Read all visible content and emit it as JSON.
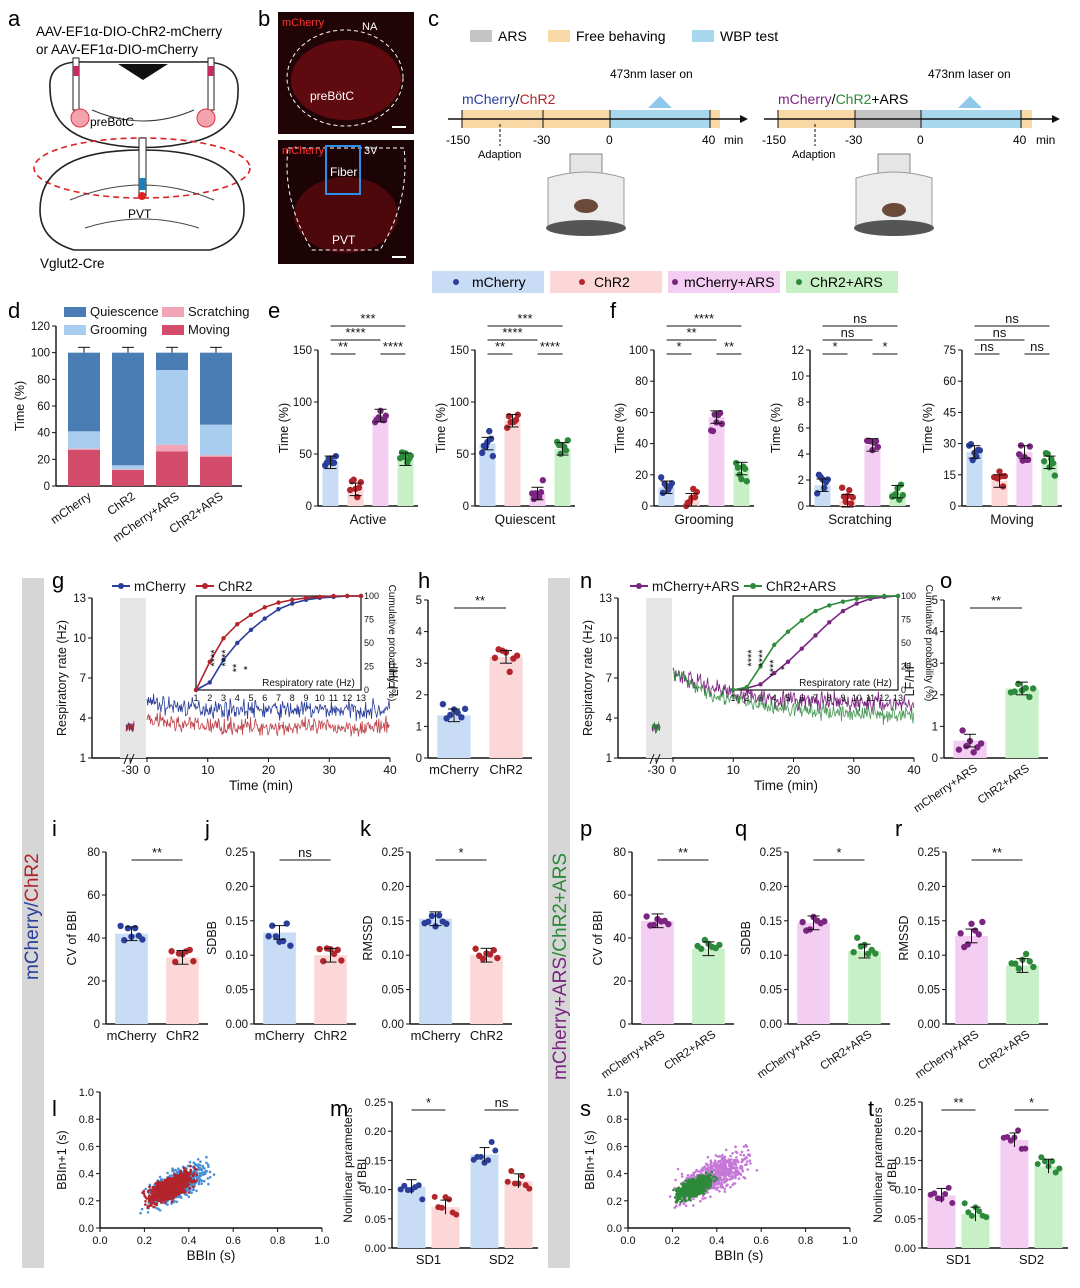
{
  "panel_letters": [
    "a",
    "b",
    "c",
    "d",
    "e",
    "f",
    "g",
    "h",
    "i",
    "j",
    "k",
    "l",
    "m",
    "n",
    "o",
    "p",
    "q",
    "r",
    "s",
    "t"
  ],
  "colors": {
    "mcherry": "#2a3e9a",
    "chr2": "#b2252b",
    "mcherry_ars": "#7b2580",
    "chr2_ars": "#2c8a3a",
    "mcherry_fill": "#c9dcf5",
    "chr2_fill": "#fbd7d8",
    "mcherry_ars_fill": "#f3cdf2",
    "chr2_ars_fill": "#c7f0c7",
    "quiescence": "#4a7db4",
    "grooming": "#a8cdef",
    "scratching": "#f3a4b6",
    "moving": "#d44c6c",
    "ars": "#c4c4c4",
    "free_behaving": "#f8d9a6",
    "wbp": "#a8d8ee",
    "sidebar": "#d6d6d6"
  },
  "panel_a": {
    "virus_line1": "AAV-EF1α-DIO-ChR2-mCherry",
    "virus_line2": "or AAV-EF1α-DIO-mCherry",
    "region1": "preBötC",
    "region2": "PVT",
    "mouse": "Vglut2-Cre"
  },
  "panel_b": {
    "top_stain": "mCherry",
    "top_na": "NA",
    "top_region": "preBötC",
    "bottom_stain": "mCherry",
    "fiber": "Fiber",
    "bottom_3v": "3V",
    "bottom_region": "PVT"
  },
  "panel_c": {
    "legend": [
      "ARS",
      "Free behaving",
      "WBP test"
    ],
    "laser": "473nm laser on",
    "left_group_a": "mCherry",
    "left_slash": "/",
    "left_group_b": "ChR2",
    "right_group_a": "mCherry",
    "right_slash": "/",
    "right_group_b": "ChR2",
    "right_group_c": "+ARS",
    "ticks_left": [
      "-150",
      "-30",
      "0",
      "40"
    ],
    "ticks_right": [
      "-150",
      "-30",
      "0",
      "40"
    ],
    "unit": "min",
    "adaption": "Adaption"
  },
  "group_legend": [
    "mCherry",
    "ChR2",
    "mCherry+ARS",
    "ChR2+ARS"
  ],
  "sidebar_left": {
    "a": "mCherry",
    "slash": "/",
    "b": "ChR2"
  },
  "sidebar_right": {
    "a": "mCherry+ARS",
    "slash": "/",
    "b": "ChR2+ARS"
  },
  "chart_data": [
    {
      "panel": "d",
      "type": "bar",
      "stacked": true,
      "ylabel": "Time (%)",
      "ylim": [
        0,
        120
      ],
      "yticks": [
        0,
        20,
        40,
        60,
        80,
        100,
        120
      ],
      "categories": [
        "mCherry",
        "ChR2",
        "mCherry+ARS",
        "ChR2+ARS"
      ],
      "series": [
        {
          "name": "Moving",
          "values": [
            27,
            12,
            26,
            22
          ]
        },
        {
          "name": "Scratching",
          "values": [
            1,
            0.5,
            5,
            1
          ]
        },
        {
          "name": "Grooming",
          "values": [
            13,
            3,
            56,
            23
          ]
        },
        {
          "name": "Quiescence",
          "values": [
            59,
            84.5,
            13,
            54
          ]
        }
      ],
      "legend": [
        "Quiescence",
        "Scratching",
        "Grooming",
        "Moving"
      ]
    },
    {
      "panel": "e1",
      "type": "bar",
      "xlabel": "Active",
      "ylabel": "Time (%)",
      "ylim": [
        0,
        150
      ],
      "yticks": [
        0,
        50,
        100,
        150
      ],
      "values": [
        42,
        16,
        87,
        45
      ],
      "sig": [
        "***",
        "****",
        "**",
        "****"
      ]
    },
    {
      "panel": "e2",
      "type": "bar",
      "xlabel": "Quiescent",
      "ylabel": "Time (%)",
      "ylim": [
        0,
        150
      ],
      "yticks": [
        0,
        50,
        100,
        150
      ],
      "values": [
        60,
        82,
        12,
        55
      ],
      "sig": [
        "***",
        "****",
        "**",
        "****"
      ]
    },
    {
      "panel": "f1",
      "type": "bar",
      "xlabel": "Grooming",
      "ylabel": "Time (%)",
      "ylim": [
        0,
        100
      ],
      "yticks": [
        0,
        20,
        40,
        60,
        80,
        100
      ],
      "values": [
        12,
        4,
        57,
        24
      ],
      "sig": [
        "****",
        "**",
        "*",
        "**"
      ]
    },
    {
      "panel": "f2",
      "type": "bar",
      "xlabel": "Scratching",
      "ylabel": "Time (%)",
      "ylim": [
        0,
        12
      ],
      "yticks": [
        0,
        2,
        4,
        6,
        8,
        10,
        12
      ],
      "values": [
        1.6,
        0.4,
        4.7,
        1.1
      ],
      "sig": [
        "ns",
        "ns",
        "*",
        "*"
      ]
    },
    {
      "panel": "f3",
      "type": "bar",
      "xlabel": "Moving",
      "ylabel": "Time (%)",
      "ylim": [
        0,
        75
      ],
      "yticks": [
        0,
        15,
        30,
        45,
        60,
        75
      ],
      "values": [
        26,
        12,
        26,
        21
      ],
      "sig": [
        "ns",
        "ns",
        "ns",
        "ns"
      ]
    },
    {
      "panel": "g",
      "type": "line",
      "xlabel": "Time (min)",
      "ylabel": "Respiratory rate (Hz)",
      "ylim": [
        1,
        13
      ],
      "yticks": [
        1,
        4,
        7,
        10,
        13
      ],
      "xticks": [
        "-30",
        "0",
        "10",
        "20",
        "30",
        "40"
      ],
      "series": [
        {
          "name": "mCherry",
          "mean_hz": 4.6
        },
        {
          "name": "ChR2",
          "mean_hz": 3.3
        }
      ],
      "inset": {
        "xlabel": "Respiratory rate (Hz)",
        "ylabel": "Cumulative probability (%)",
        "xticks": [
          "1",
          "2",
          "3",
          "4",
          "5",
          "6",
          "7",
          "8",
          "9",
          "10",
          "11",
          "12",
          "13"
        ],
        "yticks": [
          "0",
          "25",
          "50",
          "75",
          "100"
        ],
        "series": [
          {
            "name": "mCherry",
            "x": [
              1,
              2,
              3,
              4,
              5,
              6,
              7,
              8,
              9,
              10,
              11,
              12,
              13
            ],
            "y": [
              0,
              8,
              32,
              50,
              64,
              76,
              86,
              92,
              96,
              98,
              99,
              100,
              100
            ]
          },
          {
            "name": "ChR2",
            "x": [
              1,
              2,
              3,
              4,
              5,
              6,
              7,
              8,
              9,
              10,
              11,
              12,
              13
            ],
            "y": [
              0,
              30,
              55,
              70,
              80,
              88,
              93,
              96,
              98,
              99,
              100,
              100,
              100
            ]
          }
        ],
        "sig": [
          "****",
          "****",
          "**",
          "*"
        ]
      }
    },
    {
      "panel": "h",
      "type": "bar",
      "ylabel": "LF/HF",
      "ylim": [
        0,
        5
      ],
      "yticks": [
        0,
        1,
        2,
        3,
        4,
        5
      ],
      "categories": [
        "mCherry",
        "ChR2"
      ],
      "values": [
        1.35,
        3.2
      ],
      "sig": [
        "**"
      ]
    },
    {
      "panel": "n",
      "type": "line",
      "xlabel": "Time (min)",
      "ylabel": "Respiratory rate (Hz)",
      "ylim": [
        1,
        13
      ],
      "yticks": [
        1,
        4,
        7,
        10,
        13
      ],
      "xticks": [
        "-30",
        "0",
        "10",
        "20",
        "30",
        "40"
      ],
      "series": [
        {
          "name": "mCherry+ARS",
          "mean_hz": 5.0
        },
        {
          "name": "ChR2+ARS",
          "mean_hz": 4.2
        }
      ],
      "inset": {
        "xlabel": "Respiratory rate (Hz)",
        "ylabel": "Cumulative probability (%)",
        "xticks": [
          "1",
          "2",
          "3",
          "4",
          "5",
          "6",
          "7",
          "8",
          "9",
          "10",
          "11",
          "12",
          "13"
        ],
        "yticks": [
          "0",
          "25",
          "50",
          "75",
          "100"
        ],
        "series": [
          {
            "name": "mCherry+ARS",
            "x": [
              1,
              2,
              3,
              4,
              5,
              6,
              7,
              8,
              9,
              10,
              11,
              12,
              13
            ],
            "y": [
              0,
              2,
              6,
              18,
              30,
              44,
              58,
              72,
              84,
              92,
              97,
              99,
              100
            ]
          },
          {
            "name": "ChR2+ARS",
            "x": [
              1,
              2,
              3,
              4,
              5,
              6,
              7,
              8,
              9,
              10,
              11,
              12,
              13
            ],
            "y": [
              0,
              3,
              25,
              48,
              62,
              74,
              84,
              90,
              94,
              97,
              99,
              100,
              100
            ]
          }
        ],
        "sig": [
          "****",
          "****",
          "****",
          "*"
        ]
      }
    },
    {
      "panel": "o",
      "type": "bar",
      "ylabel": "LF/HF",
      "ylim": [
        0,
        5
      ],
      "yticks": [
        0,
        1,
        2,
        3,
        4,
        5
      ],
      "categories": [
        "mCherry+ARS",
        "ChR2+ARS"
      ],
      "values": [
        0.55,
        2.2
      ],
      "sig": [
        "**"
      ]
    },
    {
      "panel": "i",
      "type": "bar",
      "ylabel": "CV of BBI",
      "ylim": [
        0,
        80
      ],
      "yticks": [
        0,
        20,
        40,
        60,
        80
      ],
      "categories": [
        "mCherry",
        "ChR2"
      ],
      "values": [
        42,
        31
      ],
      "sig": [
        "**"
      ]
    },
    {
      "panel": "j",
      "type": "bar",
      "ylabel": "SDBB",
      "ylim": [
        0,
        0.25
      ],
      "yticks": [
        0.0,
        0.05,
        0.1,
        0.15,
        0.2,
        0.25
      ],
      "categories": [
        "mCherry",
        "ChR2"
      ],
      "values": [
        0.133,
        0.1
      ],
      "sig": [
        "ns"
      ]
    },
    {
      "panel": "k",
      "type": "bar",
      "ylabel": "RMSSD",
      "ylim": [
        0,
        0.25
      ],
      "yticks": [
        0.0,
        0.05,
        0.1,
        0.15,
        0.2,
        0.25
      ],
      "categories": [
        "mCherry",
        "ChR2"
      ],
      "values": [
        0.153,
        0.1
      ],
      "sig": [
        "*"
      ]
    },
    {
      "panel": "p",
      "type": "bar",
      "ylabel": "CV of BBI",
      "ylim": [
        0,
        80
      ],
      "yticks": [
        0,
        20,
        40,
        60,
        80
      ],
      "categories": [
        "mCherry+ARS",
        "ChR2+ARS"
      ],
      "values": [
        48,
        35
      ],
      "sig": [
        "**"
      ]
    },
    {
      "panel": "q",
      "type": "bar",
      "ylabel": "SDBB",
      "ylim": [
        0,
        0.25
      ],
      "yticks": [
        0.0,
        0.05,
        0.1,
        0.15,
        0.2,
        0.25
      ],
      "categories": [
        "mCherry+ARS",
        "ChR2+ARS"
      ],
      "values": [
        0.147,
        0.106
      ],
      "sig": [
        "*"
      ]
    },
    {
      "panel": "r",
      "type": "bar",
      "ylabel": "RMSSD",
      "ylim": [
        0,
        0.25
      ],
      "yticks": [
        0.0,
        0.05,
        0.1,
        0.15,
        0.2,
        0.25
      ],
      "categories": [
        "mCherry+ARS",
        "ChR2+ARS"
      ],
      "values": [
        0.128,
        0.085
      ],
      "sig": [
        "**"
      ]
    },
    {
      "panel": "l",
      "type": "scatter",
      "xlabel": "BBIn (s)",
      "ylabel": "BBIn+1 (s)",
      "xlim": [
        0,
        1
      ],
      "ylim": [
        0,
        1
      ],
      "xticks": [
        "0.0",
        "0.2",
        "0.4",
        "0.6",
        "0.8",
        "1.0"
      ],
      "yticks": [
        "0.0",
        "0.2",
        "0.4",
        "0.6",
        "0.8",
        "1.0"
      ],
      "series": [
        {
          "name": "mCherry",
          "center": [
            0.35,
            0.32
          ],
          "spread": 0.12
        },
        {
          "name": "ChR2",
          "center": [
            0.32,
            0.3
          ],
          "spread": 0.09
        }
      ]
    },
    {
      "panel": "m",
      "type": "bar",
      "ylabel": "Nonlinear parameters of BBI",
      "ylim": [
        0,
        0.25
      ],
      "yticks": [
        0.0,
        0.05,
        0.1,
        0.15,
        0.2,
        0.25
      ],
      "categories": [
        "SD1",
        "SD2"
      ],
      "series": [
        {
          "name": "mCherry",
          "values": [
            0.105,
            0.16
          ]
        },
        {
          "name": "ChR2",
          "values": [
            0.07,
            0.115
          ]
        }
      ],
      "sig": [
        "*",
        "ns"
      ]
    },
    {
      "panel": "s",
      "type": "scatter",
      "xlabel": "BBIn (s)",
      "ylabel": "BBIn+1 (s)",
      "xlim": [
        0,
        1
      ],
      "ylim": [
        0,
        1
      ],
      "xticks": [
        "0.0",
        "0.2",
        "0.4",
        "0.6",
        "0.8",
        "1.0"
      ],
      "yticks": [
        "0.0",
        "0.2",
        "0.4",
        "0.6",
        "0.8",
        "1.0"
      ],
      "series": [
        {
          "name": "mCherry+ARS",
          "center": [
            0.38,
            0.38
          ],
          "spread": 0.14
        },
        {
          "name": "ChR2+ARS",
          "center": [
            0.3,
            0.3
          ],
          "spread": 0.07
        }
      ]
    },
    {
      "panel": "t",
      "type": "bar",
      "ylabel": "Nonlinear parameters of BBI",
      "ylim": [
        0,
        0.25
      ],
      "yticks": [
        0.0,
        0.05,
        0.1,
        0.15,
        0.2,
        0.25
      ],
      "categories": [
        "SD1",
        "SD2"
      ],
      "series": [
        {
          "name": "mCherry+ARS",
          "values": [
            0.09,
            0.185
          ]
        },
        {
          "name": "ChR2+ARS",
          "values": [
            0.058,
            0.14
          ]
        }
      ],
      "sig": [
        "**",
        "*"
      ]
    }
  ]
}
